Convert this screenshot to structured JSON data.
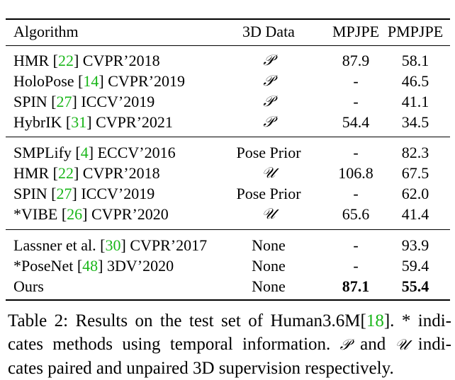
{
  "table": {
    "headers": {
      "algorithm": "Algorithm",
      "data3d": "3D Data",
      "mpjpe": "MPJPE",
      "pmpjpe": "PMPJPE"
    },
    "groups": [
      [
        {
          "name": "HMR [",
          "ref": "22",
          "venue": "] CVPR’2018",
          "data3d": "𝒫",
          "mpjpe": "87.9",
          "pmpjpe": "58.1"
        },
        {
          "name": "HoloPose [",
          "ref": "14",
          "venue": "] CVPR’2019",
          "data3d": "𝒫",
          "mpjpe": "-",
          "pmpjpe": "46.5"
        },
        {
          "name": "SPIN [",
          "ref": "27",
          "venue": "] ICCV’2019",
          "data3d": "𝒫",
          "mpjpe": "-",
          "pmpjpe": "41.1"
        },
        {
          "name": "HybrIK [",
          "ref": "31",
          "venue": "] CVPR’2021",
          "data3d": "𝒫",
          "mpjpe": "54.4",
          "pmpjpe": "34.5"
        }
      ],
      [
        {
          "name": "SMPLify [",
          "ref": "4",
          "venue": "] ECCV’2016",
          "data3d": "Pose Prior",
          "mpjpe": "-",
          "pmpjpe": "82.3"
        },
        {
          "name": "HMR [",
          "ref": "22",
          "venue": "] CVPR’2018",
          "data3d": "𝒰",
          "mpjpe": "106.8",
          "pmpjpe": "67.5"
        },
        {
          "name": "SPIN [",
          "ref": "27",
          "venue": "] ICCV’2019",
          "data3d": "Pose Prior",
          "mpjpe": "-",
          "pmpjpe": "62.0"
        },
        {
          "name": "*VIBE [",
          "ref": "26",
          "venue": "] CVPR’2020",
          "data3d": "𝒰",
          "mpjpe": "65.6",
          "pmpjpe": "41.4"
        }
      ],
      [
        {
          "name": "Lassner et al. [",
          "ref": "30",
          "venue": "] CVPR’2017",
          "data3d": "None",
          "mpjpe": "-",
          "pmpjpe": "93.9"
        },
        {
          "name": "*PoseNet [",
          "ref": "48",
          "venue": "] 3DV’2020",
          "data3d": "None",
          "mpjpe": "-",
          "pmpjpe": "59.4"
        },
        {
          "name": "Ours",
          "ref": "",
          "venue": "",
          "data3d": "None",
          "mpjpe": "87.1",
          "pmpjpe": "55.4"
        }
      ]
    ]
  },
  "caption": {
    "line1_a": "Table 2: Results on the test set of Human3.6M[",
    "line1_ref": "18",
    "line1_b": "]. * indi-",
    "line2_a": "cates methods using temporal information. ",
    "line2_p": "𝒫",
    "line2_b": " and ",
    "line2_u": "𝒰",
    "line2_c": " indi-",
    "line3": "cates paired and unpaired 3D supervision respectively."
  }
}
